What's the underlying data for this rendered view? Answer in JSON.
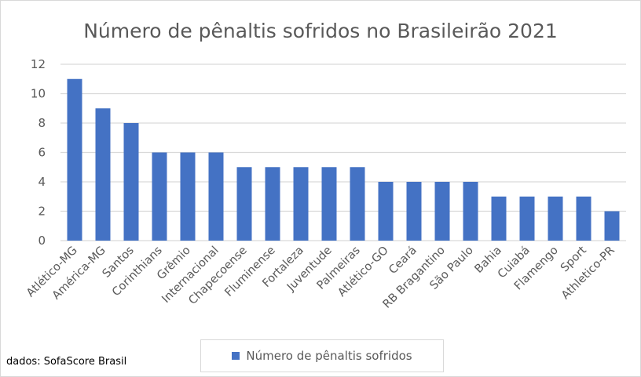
{
  "chart_data": {
    "type": "bar",
    "title": "Número de pênaltis sofridos no Brasileirão 2021",
    "categories": [
      "Atlético-MG",
      "América-MG",
      "Santos",
      "Corinthians",
      "Grêmio",
      "Internacional",
      "Chapecoense",
      "Fluminense",
      "Fortaleza",
      "Juventude",
      "Palmeiras",
      "Atlético-GO",
      "Ceará",
      "RB Bragantino",
      "São Paulo",
      "Bahia",
      "Cuiabá",
      "Flamengo",
      "Sport",
      "Athletico-PR"
    ],
    "series": [
      {
        "name": "Número de pênaltis sofridos",
        "values": [
          11,
          9,
          8,
          6,
          6,
          6,
          5,
          5,
          5,
          5,
          5,
          4,
          4,
          4,
          4,
          3,
          3,
          3,
          3,
          2
        ],
        "color": "#4472c4"
      }
    ],
    "yticks": [
      0,
      2,
      4,
      6,
      8,
      10,
      12
    ],
    "ylim": [
      0,
      12
    ],
    "grid": true,
    "legend_placement": "bottom",
    "xlabel": "",
    "ylabel": ""
  },
  "source_note": "dados: SofaScore Brasil"
}
